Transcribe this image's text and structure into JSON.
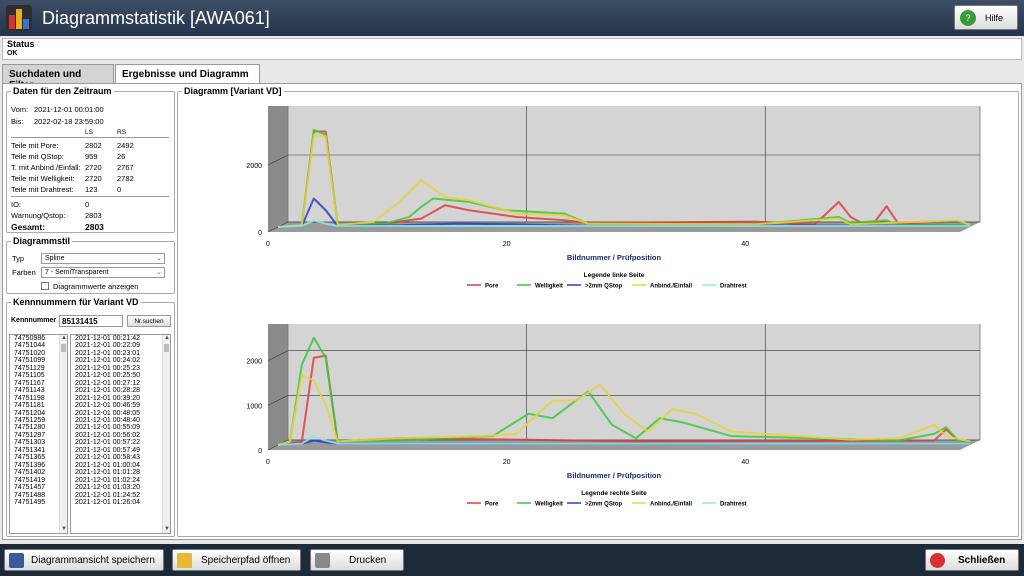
{
  "window": {
    "title": "Diagrammstatistik  [AWA061]",
    "help_label": "Hilfe"
  },
  "status": {
    "label": "Status",
    "value": "OK"
  },
  "tabs": [
    "Suchdaten und Filter",
    "Ergebnisse und Diagramm"
  ],
  "period": {
    "legend": "Daten für den Zeitraum",
    "from_label": "Vom:",
    "from": "2021-12-01 00:01:00",
    "to_label": "Bis:",
    "to": "2022-02-18 23:59:00",
    "col_ls": "LS",
    "col_rs": "RS",
    "rows": [
      [
        "Teile mit Pore:",
        "2802",
        "2492"
      ],
      [
        "Teile mit QStop:",
        "959",
        "26"
      ],
      [
        "T. mit Anbind./Einfall:",
        "2720",
        "2767"
      ],
      [
        "Teile mit Welligkeit:",
        "2720",
        "2782"
      ],
      [
        "Teile mit Drahtrest:",
        "123",
        "0"
      ]
    ],
    "io_label": "IO:",
    "io": "0",
    "warn_label": "Warnung/Qstop:",
    "warn": "2803",
    "total_label": "Gesamt:",
    "total": "2803"
  },
  "style": {
    "legend": "Diagrammstil",
    "type_label": "Typ",
    "type_value": "Spline",
    "color_label": "Farben",
    "color_value": "7 - SemiTransparent",
    "show_values_label": "Diagrammwerte anzeigen"
  },
  "ids": {
    "legend": "Kennnummern für Variant VD",
    "field_label": "Kennnummer",
    "field_value": "85131415",
    "search_label": "Nr.suchen",
    "numbers": [
      "74750986",
      "74751044",
      "74751020",
      "74751099",
      "74751129",
      "74751105",
      "74751167",
      "74751143",
      "74751198",
      "74751181",
      "74751204",
      "74751259",
      "74751280",
      "74751297",
      "74751303",
      "74751341",
      "74751365",
      "74751396",
      "74751402",
      "74751419",
      "74751457",
      "74751488",
      "74751495"
    ],
    "times": [
      "2021-12-01 00:21:42",
      "2021-12-01 00:22:09",
      "2021-12-01 00:23:01",
      "2021-12-01 00:24:02",
      "2021-12-01 00:25:23",
      "2021-12-01 00:25:50",
      "2021-12-01 00:27:12",
      "2021-12-01 00:28:28",
      "2021-12-01 00:39:20",
      "2021-12-01 00:46:59",
      "2021-12-01 00:48:05",
      "2021-12-01 00:48:40",
      "2021-12-01 00:55:09",
      "2021-12-01 00:56:02",
      "2021-12-01 00:57:22",
      "2021-12-01 00:57:49",
      "2021-12-01 00:58:43",
      "2021-12-01 01:00:04",
      "2021-12-01 01:01:28",
      "2021-12-01 01:02:24",
      "2021-12-01 01:03:20",
      "2021-12-01 01:24:52",
      "2021-12-01 01:26:04"
    ]
  },
  "diagram": {
    "legend": "Diagramm  [Variant VD]"
  },
  "chart_data": [
    {
      "type": "line",
      "xlabel": "Bildnummer / Prüfposition",
      "legend_title": "Legende linke Seite",
      "xlim": [
        0,
        58
      ],
      "ylim": [
        0,
        4000
      ],
      "xticks": [
        "0",
        "20",
        "40"
      ],
      "yticks": [
        "0",
        "2000",
        "4000"
      ],
      "series": [
        {
          "name": "Pore",
          "color": "#e03c3c",
          "points": [
            [
              0,
              0
            ],
            [
              2,
              60
            ],
            [
              3,
              2850
            ],
            [
              4,
              2850
            ],
            [
              5,
              60
            ],
            [
              9,
              100
            ],
            [
              12,
              250
            ],
            [
              14,
              650
            ],
            [
              16,
              500
            ],
            [
              20,
              300
            ],
            [
              24,
              200
            ],
            [
              26,
              120
            ],
            [
              40,
              160
            ],
            [
              45,
              80
            ],
            [
              47,
              750
            ],
            [
              48,
              300
            ],
            [
              49,
              100
            ],
            [
              50,
              150
            ],
            [
              51,
              620
            ],
            [
              52,
              100
            ],
            [
              56,
              60
            ],
            [
              58,
              60
            ]
          ]
        },
        {
          "name": "Welligkeit",
          "color": "#3cc83c",
          "points": [
            [
              0,
              0
            ],
            [
              2,
              60
            ],
            [
              3,
              2900
            ],
            [
              4,
              2750
            ],
            [
              5,
              60
            ],
            [
              9,
              100
            ],
            [
              11,
              300
            ],
            [
              12,
              600
            ],
            [
              13,
              850
            ],
            [
              16,
              750
            ],
            [
              19,
              500
            ],
            [
              24,
              400
            ],
            [
              26,
              100
            ],
            [
              40,
              80
            ],
            [
              47,
              300
            ],
            [
              48,
              120
            ],
            [
              51,
              200
            ],
            [
              52,
              60
            ],
            [
              58,
              60
            ]
          ]
        },
        {
          "name": ">2mm QStop",
          "color": "#2840c8",
          "points": [
            [
              0,
              0
            ],
            [
              2,
              30
            ],
            [
              3,
              850
            ],
            [
              4,
              500
            ],
            [
              5,
              30
            ],
            [
              10,
              50
            ],
            [
              15,
              100
            ],
            [
              20,
              80
            ],
            [
              26,
              30
            ],
            [
              40,
              50
            ],
            [
              58,
              30
            ]
          ]
        },
        {
          "name": "Anbind./Einfall",
          "color": "#e8d23c",
          "points": [
            [
              0,
              0
            ],
            [
              2,
              60
            ],
            [
              3,
              2750
            ],
            [
              4,
              2700
            ],
            [
              5,
              60
            ],
            [
              8,
              150
            ],
            [
              10,
              700
            ],
            [
              12,
              1400
            ],
            [
              14,
              900
            ],
            [
              16,
              800
            ],
            [
              18,
              600
            ],
            [
              20,
              400
            ],
            [
              24,
              350
            ],
            [
              26,
              100
            ],
            [
              40,
              80
            ],
            [
              47,
              250
            ],
            [
              48,
              80
            ],
            [
              57,
              200
            ],
            [
              58,
              60
            ]
          ]
        },
        {
          "name": "Drahtrest",
          "color": "#8ee8e8",
          "points": [
            [
              0,
              0
            ],
            [
              2,
              30
            ],
            [
              3,
              200
            ],
            [
              4,
              100
            ],
            [
              5,
              30
            ],
            [
              58,
              30
            ]
          ]
        }
      ]
    },
    {
      "type": "line",
      "xlabel": "Bildnummer / Prüfposition",
      "legend_title": "Legende rechte Seite",
      "xlim": [
        0,
        58
      ],
      "ylim": [
        0,
        3000
      ],
      "xticks": [
        "0",
        "20",
        "40"
      ],
      "yticks": [
        "0",
        "1000",
        "2000",
        "3000"
      ],
      "series": [
        {
          "name": "Pore",
          "color": "#e03c3c",
          "points": [
            [
              0,
              0
            ],
            [
              2,
              80
            ],
            [
              3,
              1950
            ],
            [
              4,
              2000
            ],
            [
              5,
              80
            ],
            [
              10,
              150
            ],
            [
              20,
              120
            ],
            [
              30,
              80
            ],
            [
              55,
              100
            ],
            [
              56,
              350
            ],
            [
              57,
              100
            ],
            [
              58,
              80
            ]
          ]
        },
        {
          "name": "Welligkeit",
          "color": "#3cc83c",
          "points": [
            [
              0,
              0
            ],
            [
              1,
              60
            ],
            [
              2,
              1800
            ],
            [
              3,
              2400
            ],
            [
              4,
              1950
            ],
            [
              5,
              80
            ],
            [
              10,
              100
            ],
            [
              18,
              200
            ],
            [
              21,
              700
            ],
            [
              23,
              600
            ],
            [
              26,
              1200
            ],
            [
              28,
              450
            ],
            [
              30,
              150
            ],
            [
              32,
              600
            ],
            [
              34,
              500
            ],
            [
              38,
              200
            ],
            [
              52,
              100
            ],
            [
              55,
              250
            ],
            [
              56,
              400
            ],
            [
              57,
              100
            ],
            [
              58,
              80
            ]
          ]
        },
        {
          "name": ">2mm QStop",
          "color": "#2840c8",
          "points": [
            [
              0,
              0
            ],
            [
              2,
              30
            ],
            [
              3,
              100
            ],
            [
              4,
              60
            ],
            [
              5,
              30
            ],
            [
              58,
              30
            ]
          ]
        },
        {
          "name": "Anbind./Einfall",
          "color": "#e8d23c",
          "points": [
            [
              0,
              0
            ],
            [
              1,
              80
            ],
            [
              2,
              1550
            ],
            [
              3,
              1450
            ],
            [
              4,
              900
            ],
            [
              5,
              80
            ],
            [
              10,
              150
            ],
            [
              17,
              200
            ],
            [
              20,
              250
            ],
            [
              23,
              1000
            ],
            [
              25,
              1000
            ],
            [
              27,
              1350
            ],
            [
              29,
              700
            ],
            [
              31,
              300
            ],
            [
              33,
              800
            ],
            [
              35,
              700
            ],
            [
              38,
              300
            ],
            [
              48,
              120
            ],
            [
              52,
              150
            ],
            [
              55,
              450
            ],
            [
              56,
              200
            ],
            [
              58,
              80
            ]
          ]
        },
        {
          "name": "Drahtrest",
          "color": "#8ee8e8",
          "points": [
            [
              0,
              0
            ],
            [
              2,
              30
            ],
            [
              3,
              200
            ],
            [
              4,
              100
            ],
            [
              5,
              30
            ],
            [
              58,
              30
            ]
          ]
        }
      ]
    }
  ],
  "bottom": {
    "save_view": "Diagrammansicht speichern",
    "open_path": "Speicherpfad öffnen",
    "print": "Drucken",
    "close": "Schließen"
  }
}
